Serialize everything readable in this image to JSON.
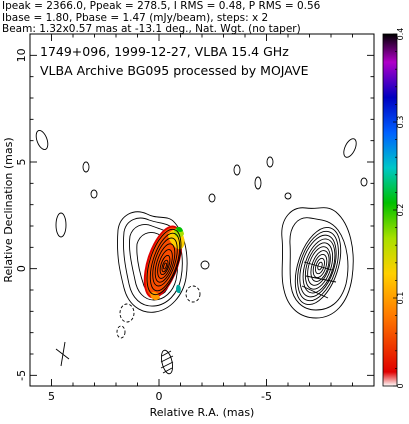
{
  "header": {
    "lines": [
      "Ipeak = 2366.0, Ppeak = 278.5, I RMS = 0.48, P RMS = 0.56",
      "Ibase = 1.80, Pbase = 1.47 (mJy/beam), steps: x 2",
      "Beam: 1.32x0.57 mas at -13.1 deg., Nat. Wgt. (no taper)"
    ]
  },
  "chart_data": {
    "type": "contour",
    "title_lines": [
      "1749+096, 1999-12-27, VLBA 15.4 GHz",
      "VLBA Archive BG095 processed by MOJAVE"
    ],
    "xlabel": "Relative R.A. (mas)",
    "ylabel": "Relative Declination (mas)",
    "xlim": [
      6,
      -10
    ],
    "ylim": [
      -5.5,
      11
    ],
    "x_ticks": [
      5,
      0,
      -5
    ],
    "x_tick_labels": [
      "5",
      "0",
      "-5"
    ],
    "y_ticks": [
      10,
      5,
      0,
      -5
    ],
    "y_tick_labels": [
      "10",
      "5",
      "0",
      "-5"
    ],
    "colorbar": {
      "range": [
        0,
        0.4
      ],
      "ticks": [
        0,
        0.1,
        0.2,
        0.3,
        0.4
      ],
      "tick_labels": [
        "0",
        "0.1",
        "0.2",
        "0.3",
        "0.4"
      ],
      "colormap": "rainbow"
    },
    "core": {
      "x": 0,
      "y": 0
    },
    "ghost_image": {
      "x": -7,
      "y": 0
    },
    "beam": {
      "major": 1.32,
      "minor": 0.57,
      "pa_deg": -13.1
    },
    "pol_vector_marker": {
      "x": 4.6,
      "y": -3.7
    }
  }
}
